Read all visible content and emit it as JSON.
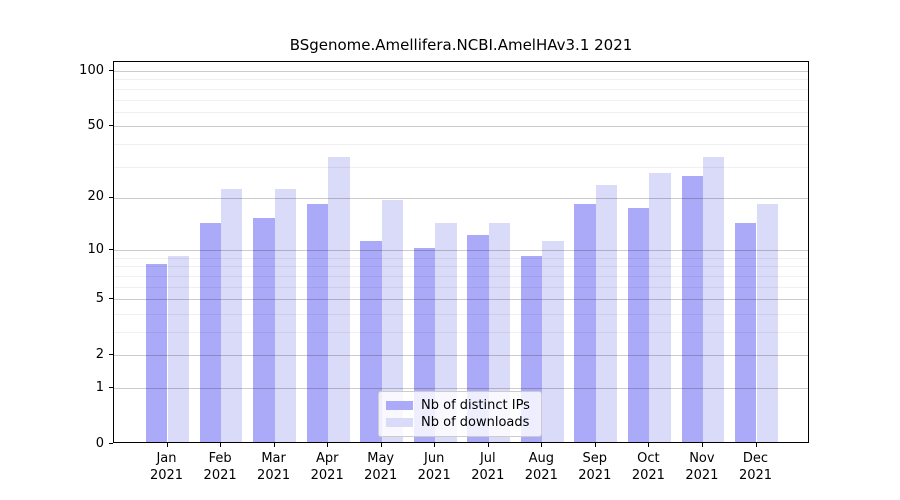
{
  "title": "BSgenome.Amellifera.NCBI.AmelHAv3.1 2021",
  "chart_data": {
    "type": "bar",
    "title": "BSgenome.Amellifera.NCBI.AmelHAv3.1 2021",
    "categories": [
      "Jan",
      "Feb",
      "Mar",
      "Apr",
      "May",
      "Jun",
      "Jul",
      "Aug",
      "Sep",
      "Oct",
      "Nov",
      "Dec"
    ],
    "category_year": "2021",
    "series": [
      {
        "name": "Nb of distinct IPs",
        "color": "#aaaaf9",
        "values": [
          8,
          14,
          15,
          18,
          11,
          10,
          12,
          9,
          18,
          17,
          26,
          14
        ]
      },
      {
        "name": "Nb of downloads",
        "color": "#dadaf9",
        "values": [
          9,
          22,
          22,
          33,
          19,
          14,
          14,
          11,
          23,
          27,
          33,
          18
        ]
      }
    ],
    "xlabel": "",
    "ylabel": "",
    "yscale": "log1p",
    "yticks": [
      0,
      1,
      2,
      5,
      10,
      20,
      50,
      100
    ],
    "minor_gridlines": [
      3,
      4,
      6,
      7,
      8,
      9,
      30,
      40,
      60,
      70,
      80,
      90
    ],
    "ylim": [
      0,
      100
    ],
    "grid": true,
    "grid_above_bars": true,
    "legend_position": "bottom-center"
  }
}
